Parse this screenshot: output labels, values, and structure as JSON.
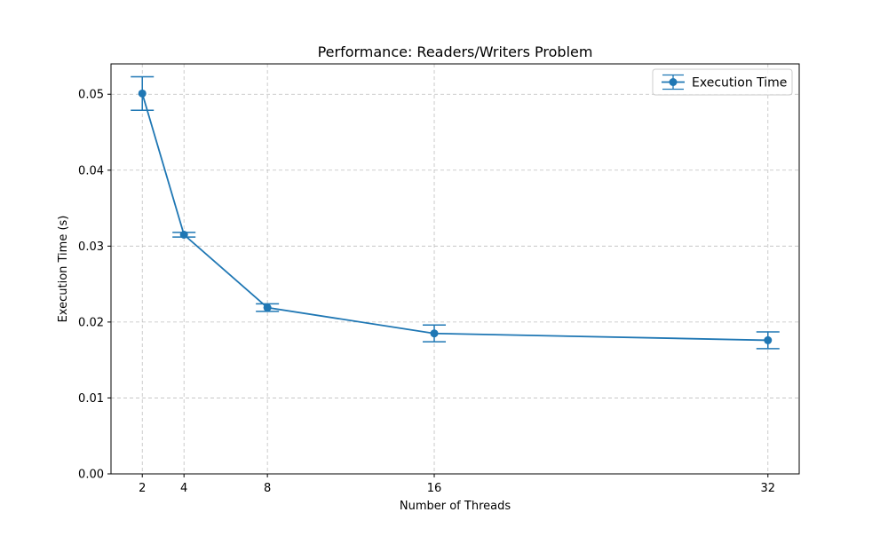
{
  "chart_data": {
    "type": "line",
    "title": "Performance: Readers/Writers Problem",
    "xlabel": "Number of Threads",
    "ylabel": "Execution Time (s)",
    "x": [
      2,
      4,
      8,
      16,
      32
    ],
    "xticks": [
      2,
      4,
      8,
      16,
      32
    ],
    "xlim": [
      0.5,
      33.5
    ],
    "ylim": [
      0,
      0.054
    ],
    "yticks": [
      0.0,
      0.01,
      0.02,
      0.03,
      0.04,
      0.05
    ],
    "ytick_labels": [
      "0.00",
      "0.01",
      "0.02",
      "0.03",
      "0.04",
      "0.05"
    ],
    "grid": true,
    "legend_position": "top-right",
    "series": [
      {
        "name": "Execution Time",
        "color": "#1f77b4",
        "marker": "circle",
        "values": [
          0.0501,
          0.0315,
          0.0219,
          0.0185,
          0.0176
        ],
        "errors": [
          0.0022,
          0.0003,
          0.0005,
          0.0011,
          0.0011
        ]
      }
    ]
  }
}
